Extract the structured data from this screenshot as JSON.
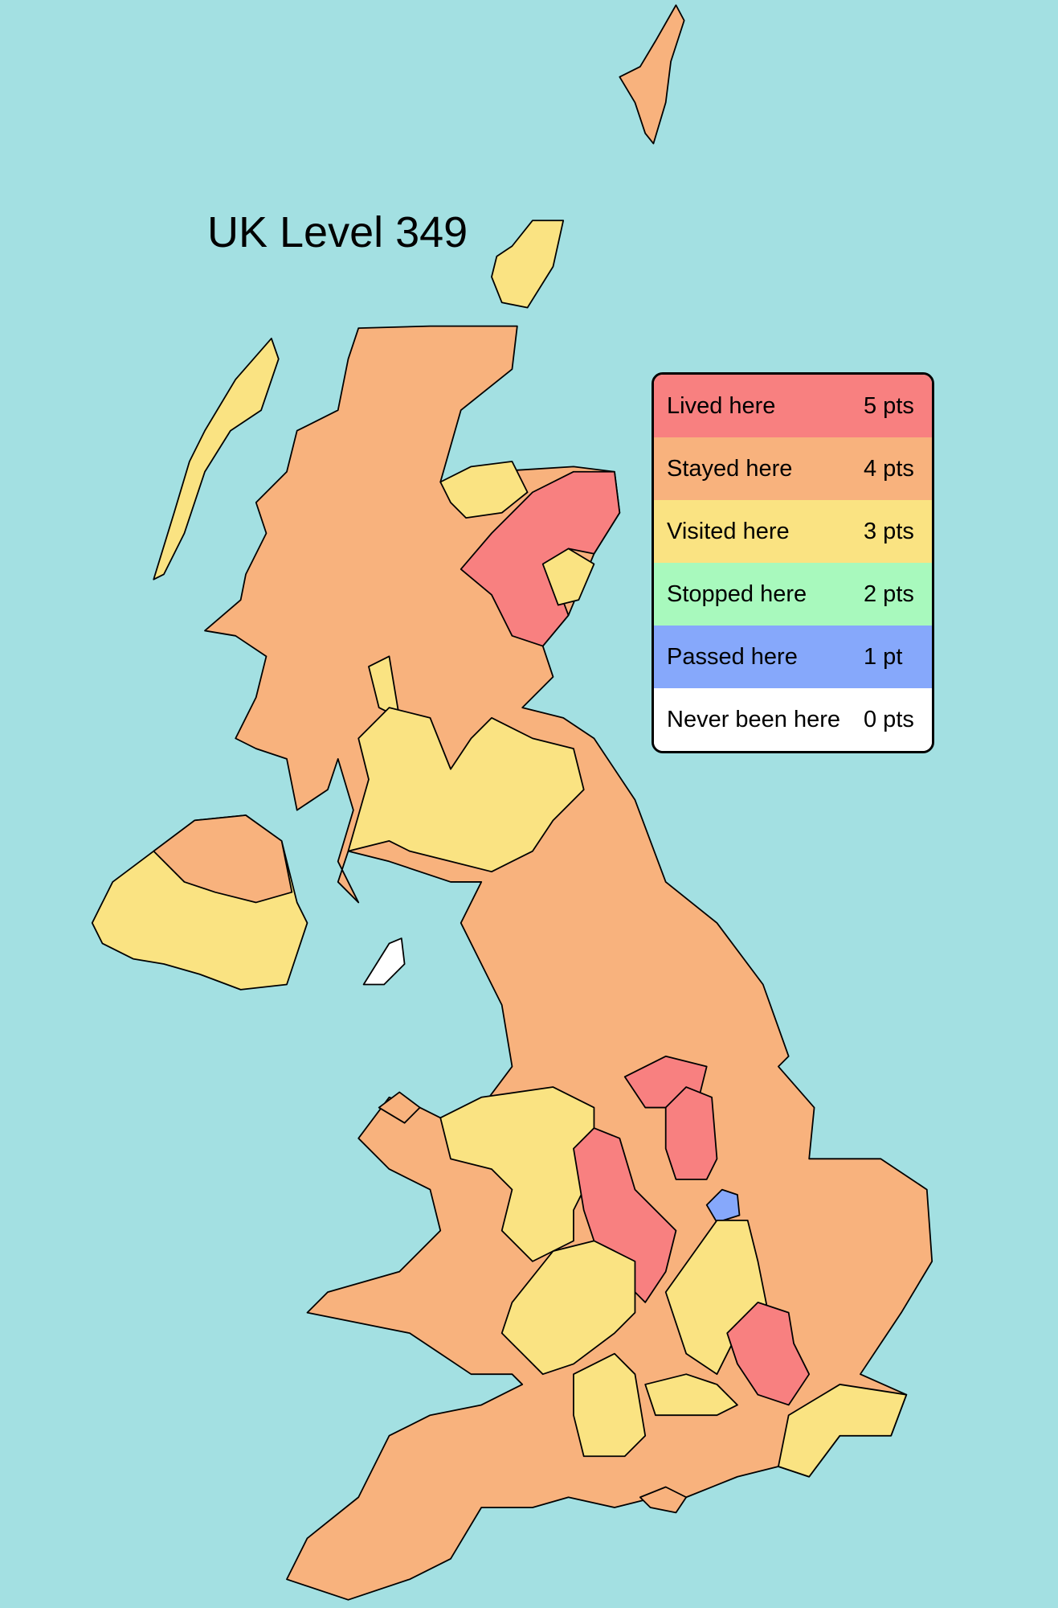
{
  "title": "UK Level 349",
  "legend": [
    {
      "label": "Lived here",
      "points": "5 pts",
      "level": 5,
      "color": "#f88080"
    },
    {
      "label": "Stayed here",
      "points": "4 pts",
      "level": 4,
      "color": "#f8b27d"
    },
    {
      "label": "Visited here",
      "points": "3 pts",
      "level": 3,
      "color": "#fae382"
    },
    {
      "label": "Stopped here",
      "points": "2 pts",
      "level": 2,
      "color": "#a8f9bd"
    },
    {
      "label": "Passed here",
      "points": "1 pt",
      "level": 1,
      "color": "#86a8fb"
    },
    {
      "label": "Never been here",
      "points": "0 pts",
      "level": 0,
      "color": "#ffffff"
    }
  ],
  "colors": {
    "sea": "#a3e0e2",
    "border": "#000000"
  }
}
